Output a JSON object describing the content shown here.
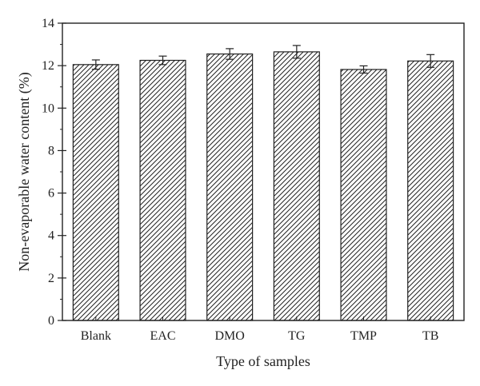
{
  "chart_data": {
    "type": "bar",
    "categories": [
      "Blank",
      "EAC",
      "DMO",
      "TG",
      "TMP",
      "TB"
    ],
    "values": [
      12.05,
      12.25,
      12.55,
      12.65,
      11.82,
      12.22
    ],
    "errors": [
      0.22,
      0.2,
      0.25,
      0.3,
      0.17,
      0.3
    ],
    "title": "",
    "xlabel": "Type of samples",
    "ylabel": "Non-evaporable water content (%)",
    "ylim": [
      0,
      14
    ],
    "yticks": [
      0,
      2,
      4,
      6,
      8,
      10,
      12,
      14
    ],
    "grid": false,
    "fill": "diagonal-hatch",
    "colors": {
      "stroke": "#222222",
      "background": "#ffffff"
    }
  }
}
